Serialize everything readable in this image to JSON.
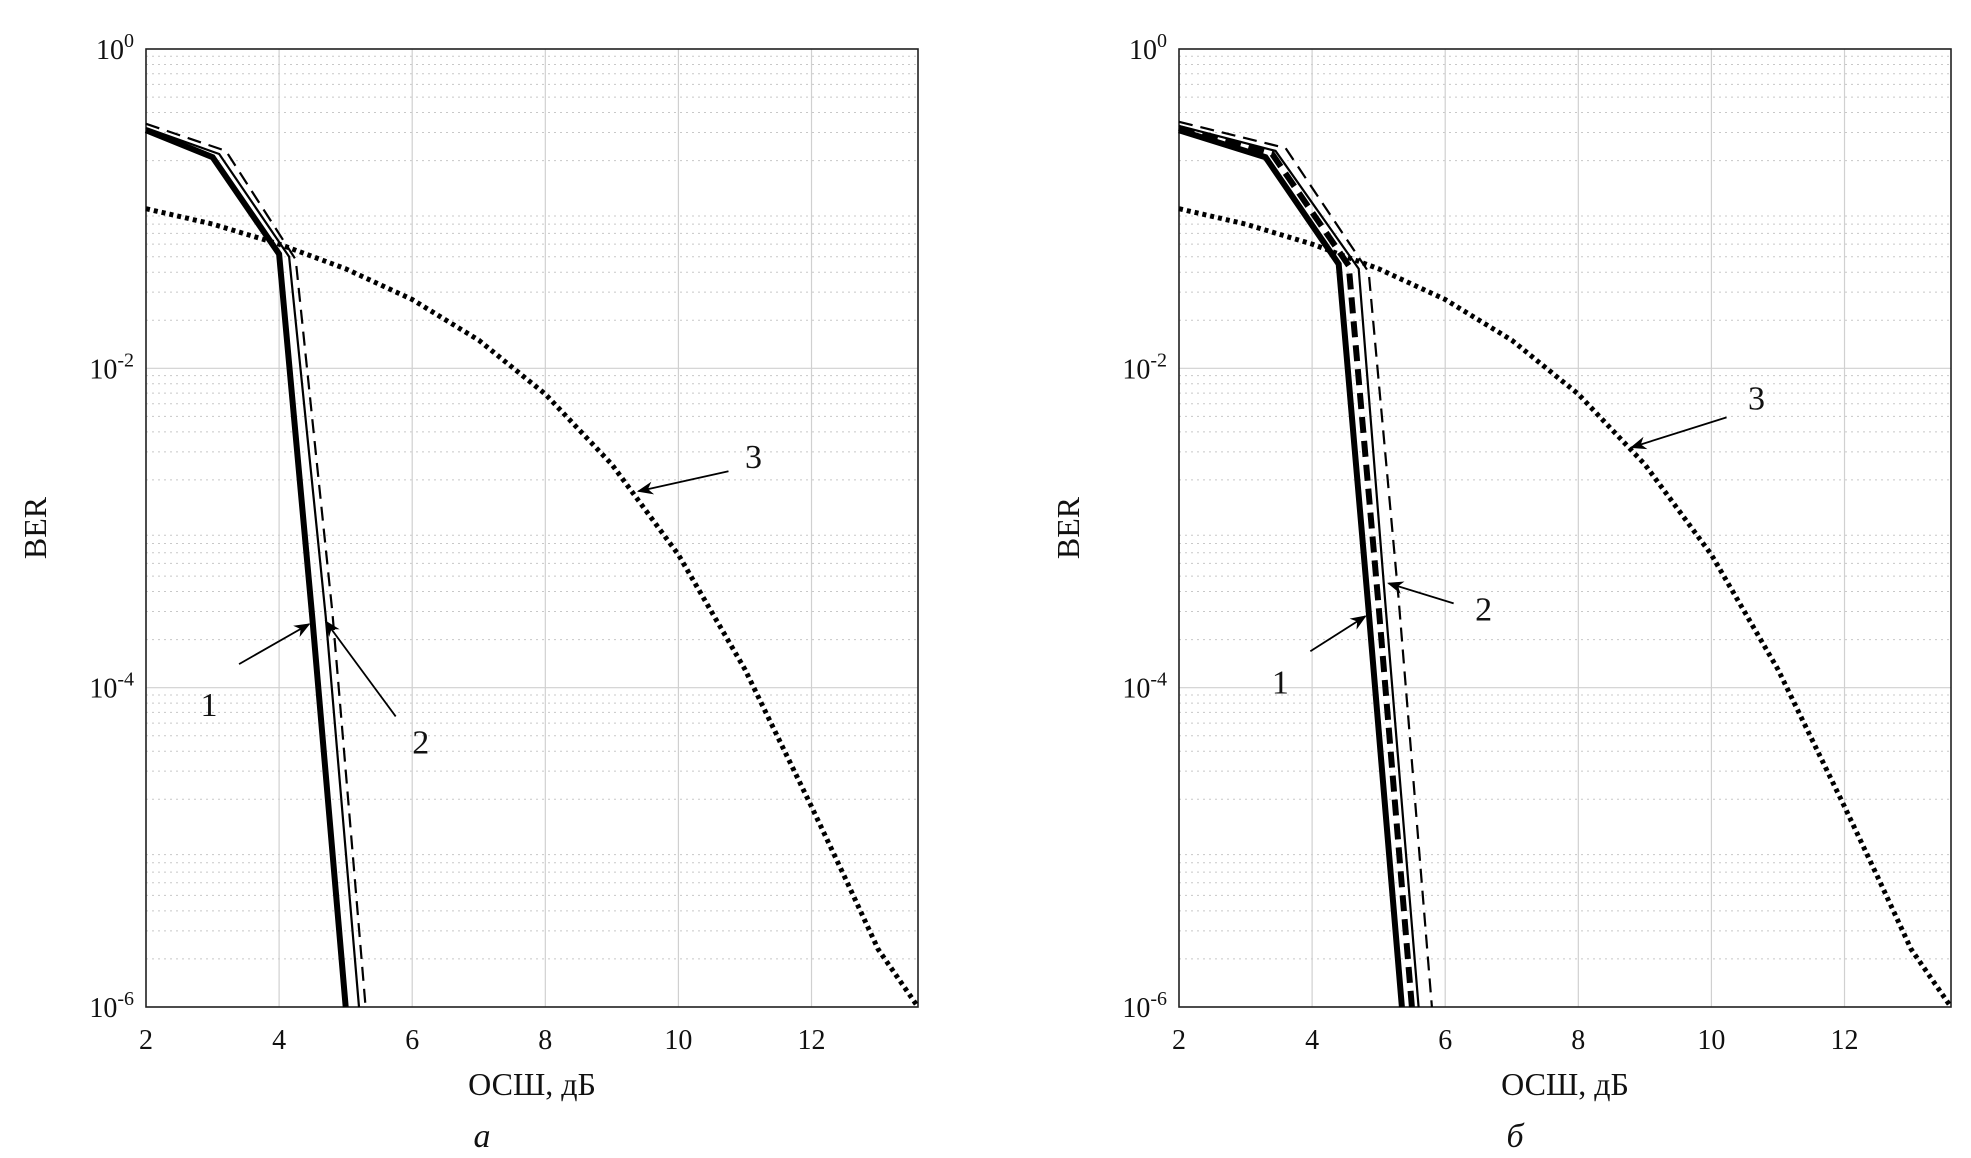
{
  "chart_data": [
    {
      "type": "line",
      "panel_label": "а",
      "xlabel": "ОСШ, дБ",
      "ylabel": "BER",
      "xlim": [
        2,
        13.6
      ],
      "ylim": [
        1e-06,
        1
      ],
      "yscale": "log",
      "grid": true,
      "x_ticks": [
        "2",
        "4",
        "6",
        "8",
        "10",
        "12"
      ],
      "y_ticks": [
        {
          "base": "10",
          "exp": "0"
        },
        {
          "base": "10",
          "exp": "-2"
        },
        {
          "base": "10",
          "exp": "-4"
        },
        {
          "base": "10",
          "exp": "-6"
        }
      ],
      "series": [
        {
          "style": "solid-thick",
          "color": "#000000",
          "x": [
            2.0,
            3.0,
            4.0,
            4.5,
            5.0
          ],
          "y": [
            0.31,
            0.21,
            0.052,
            0.00027,
            1e-06
          ]
        },
        {
          "style": "solid-thin",
          "color": "#000000",
          "x": [
            2.0,
            3.1,
            4.15,
            4.7,
            5.2
          ],
          "y": [
            0.32,
            0.22,
            0.05,
            0.00028,
            1e-06
          ]
        },
        {
          "style": "dashed",
          "color": "#000000",
          "x": [
            2.0,
            3.2,
            4.25,
            4.8,
            5.3
          ],
          "y": [
            0.34,
            0.23,
            0.048,
            0.0003,
            1e-06
          ]
        },
        {
          "style": "dotted",
          "color": "#000000",
          "x": [
            2,
            3,
            4,
            5,
            6,
            7,
            8,
            9,
            10,
            11,
            12,
            12.5,
            13,
            13.6
          ],
          "y": [
            0.1,
            0.08,
            0.06,
            0.042,
            0.027,
            0.015,
            0.0069,
            0.0025,
            0.00068,
            0.00013,
            1.8e-05,
            6.5e-06,
            2.3e-06,
            1e-06
          ]
        }
      ],
      "annotations": [
        {
          "text": "1",
          "arrow_to": [
            4.45,
            0.00025
          ]
        },
        {
          "text": "2",
          "arrow_to": [
            4.7,
            0.00026
          ]
        },
        {
          "text": "3",
          "arrow_to": [
            9.4,
            0.0017
          ]
        }
      ]
    },
    {
      "type": "line",
      "panel_label": "б",
      "xlabel": "ОСШ, дБ",
      "ylabel": "BER",
      "xlim": [
        2,
        13.6
      ],
      "ylim": [
        1e-06,
        1
      ],
      "yscale": "log",
      "grid": true,
      "x_ticks": [
        "2",
        "4",
        "6",
        "8",
        "10",
        "12"
      ],
      "y_ticks": [
        {
          "base": "10",
          "exp": "0"
        },
        {
          "base": "10",
          "exp": "-2"
        },
        {
          "base": "10",
          "exp": "-4"
        },
        {
          "base": "10",
          "exp": "-6"
        }
      ],
      "series": [
        {
          "style": "solid-thick",
          "color": "#000000",
          "x": [
            2.0,
            3.3,
            4.4,
            4.85,
            5.35
          ],
          "y": [
            0.31,
            0.21,
            0.045,
            0.0003,
            1e-06
          ]
        },
        {
          "style": "dashed-thick",
          "color": "#000000",
          "x": [
            2.0,
            3.4,
            4.55,
            5.0,
            5.5
          ],
          "y": [
            0.32,
            0.22,
            0.044,
            0.00032,
            1e-06
          ]
        },
        {
          "style": "solid-thin",
          "color": "#000000",
          "x": [
            2.0,
            3.45,
            4.7,
            5.1,
            5.6
          ],
          "y": [
            0.33,
            0.23,
            0.042,
            0.00034,
            1e-06
          ]
        },
        {
          "style": "dashed",
          "color": "#000000",
          "x": [
            2.0,
            3.6,
            4.85,
            5.3,
            5.8
          ],
          "y": [
            0.35,
            0.24,
            0.04,
            0.00036,
            1e-06
          ]
        },
        {
          "style": "dotted",
          "color": "#000000",
          "x": [
            2,
            3,
            4,
            5,
            6,
            7,
            8,
            9,
            10,
            11,
            12,
            12.5,
            13,
            13.6
          ],
          "y": [
            0.1,
            0.08,
            0.06,
            0.042,
            0.027,
            0.015,
            0.0069,
            0.0025,
            0.00068,
            0.00013,
            1.8e-05,
            6.5e-06,
            2.3e-06,
            1e-06
          ]
        }
      ],
      "annotations": [
        {
          "text": "1",
          "arrow_to": [
            4.8,
            0.00028
          ]
        },
        {
          "text": "2",
          "arrow_to": [
            5.15,
            0.00045
          ]
        },
        {
          "text": "3",
          "arrow_to": [
            8.8,
            0.0032
          ]
        }
      ]
    }
  ]
}
